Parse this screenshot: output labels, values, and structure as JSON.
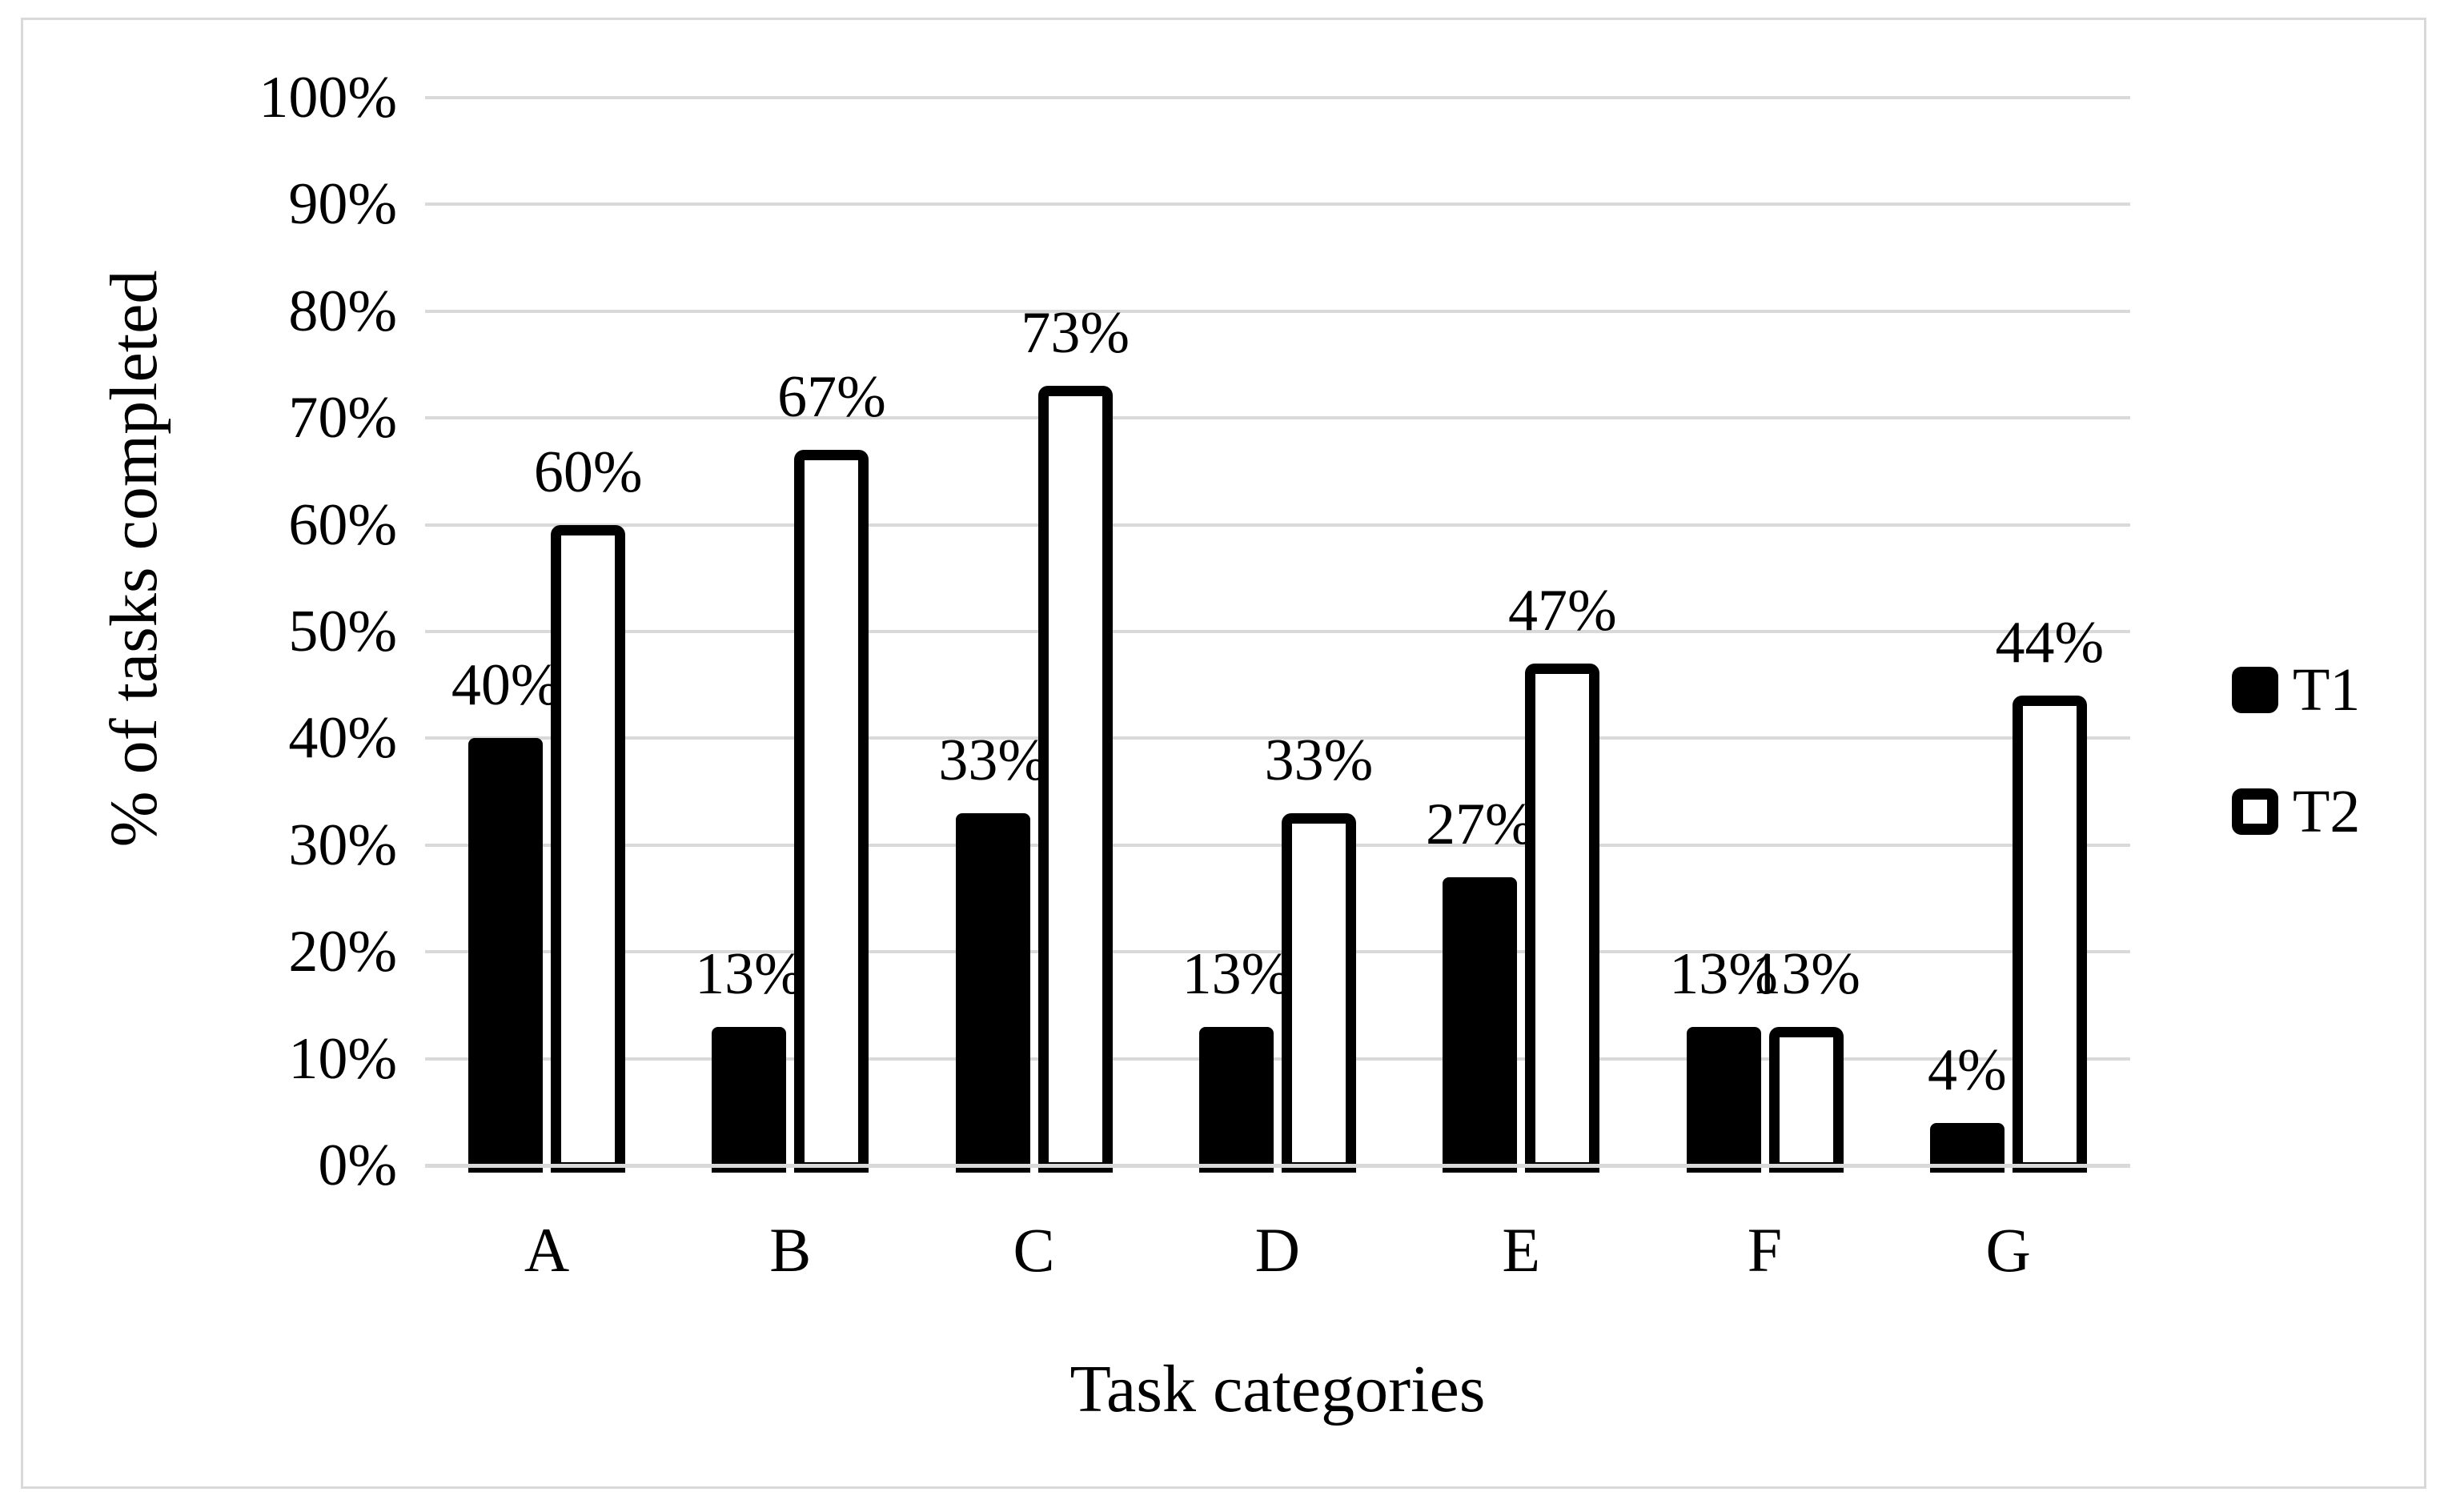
{
  "chart_data": {
    "type": "bar",
    "title": "",
    "xlabel": "Task categories",
    "ylabel": "% of tasks completed",
    "categories": [
      "A",
      "B",
      "C",
      "D",
      "E",
      "F",
      "G"
    ],
    "series": [
      {
        "name": "T1",
        "values": [
          40,
          13,
          33,
          13,
          27,
          13,
          4
        ],
        "labels": [
          "40%",
          "13%",
          "33%",
          "13%",
          "27%",
          "13%",
          "4%"
        ],
        "style": "filled-black"
      },
      {
        "name": "T2",
        "values": [
          60,
          67,
          73,
          33,
          47,
          13,
          44
        ],
        "labels": [
          "60%",
          "67%",
          "73%",
          "33%",
          "47%",
          "13%",
          "44%"
        ],
        "style": "white-black-outline"
      }
    ],
    "ylim": [
      0,
      100
    ],
    "yticks": [
      0,
      10,
      20,
      30,
      40,
      50,
      60,
      70,
      80,
      90,
      100
    ],
    "ytick_labels": [
      "0%",
      "10%",
      "20%",
      "30%",
      "40%",
      "50%",
      "60%",
      "70%",
      "80%",
      "90%",
      "100%"
    ],
    "grid": true,
    "legend_position": "right-middle",
    "colors": {
      "t1_fill": "#000000",
      "t2_fill": "#ffffff",
      "t2_border": "#000000",
      "gridline": "#d9d9d9",
      "frame_border": "#d9d9d9",
      "background": "#ffffff",
      "text": "#000000"
    }
  },
  "legend": {
    "items": [
      {
        "label": "T1",
        "swatch": "filled-black-square"
      },
      {
        "label": "T2",
        "swatch": "outlined-white-square"
      }
    ]
  }
}
